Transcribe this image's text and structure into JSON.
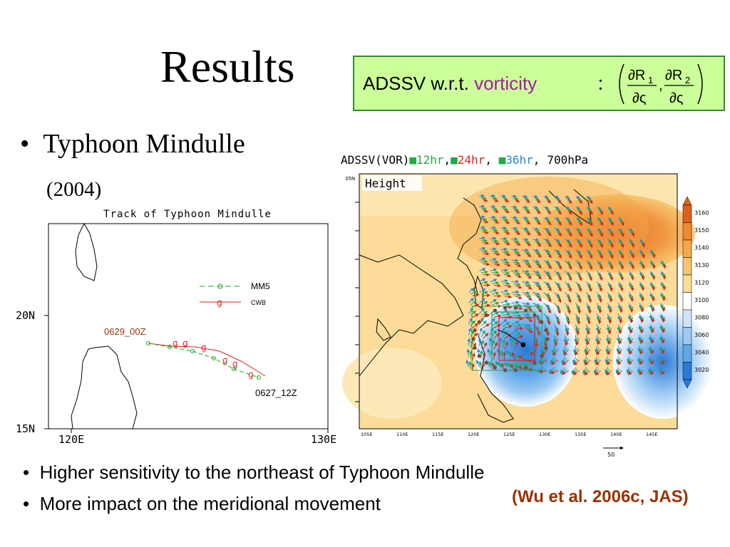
{
  "title": "Results",
  "adssv_box": {
    "prefix": "ADSSV w.r.t. ",
    "highlight": "vorticity",
    "separator": "：",
    "formula": {
      "num1": "∂R",
      "sub1": "1",
      "num2": "∂R",
      "sub2": "2",
      "den": "∂ς",
      "comma": ","
    }
  },
  "bullets_top": {
    "item": "Typhoon Mindulle",
    "year": "(2004)"
  },
  "track_chart": {
    "title": "Track of Typhoon Mindulle",
    "ytick_labels": [
      "20N",
      "15N"
    ],
    "xtick_labels": [
      "120E",
      "130E"
    ],
    "legend": [
      {
        "name": "MM5",
        "color": "#22aa22"
      },
      {
        "name": "CWB",
        "color": "#dd2222"
      }
    ],
    "start_label": "0629_00Z",
    "end_label": "0627_12Z",
    "start_label_color": "#993300",
    "end_label_color": "#000000"
  },
  "map_figure": {
    "header": {
      "prefix": "ADSSV(VOR)",
      "h12": "12hr",
      "h24": "24hr",
      "h36": "36hr",
      "level": "700hPa",
      "sep": ",",
      "sep_end": ","
    },
    "colors": {
      "c12": "#22aa44",
      "c24": "#dd2222",
      "c36": "#2288dd"
    },
    "field_label": "Height",
    "lat_labels": [
      "35N"
    ],
    "lon_labels": [
      "105E",
      "110E",
      "115E",
      "120E",
      "125E",
      "130E",
      "135E",
      "140E",
      "145E"
    ],
    "colorbar_labels": [
      "3160",
      "3150",
      "3140",
      "3130",
      "3120",
      "3100",
      "3080",
      "3060",
      "3040",
      "3020"
    ],
    "colorbar_colors": [
      "#e0601a",
      "#ee8a30",
      "#f5a94a",
      "#f8c46d",
      "#fcdc98",
      "#ffffff",
      "#cfe6f8",
      "#9ccaf2",
      "#5ea8ea",
      "#2a7ad8"
    ],
    "scale_vector_label": "50"
  },
  "bullets_bottom": [
    "Higher sensitivity to the northeast of Typhoon Mindulle",
    "More impact on the meridional movement"
  ],
  "citation": "(Wu et al. 2006c, JAS)"
}
